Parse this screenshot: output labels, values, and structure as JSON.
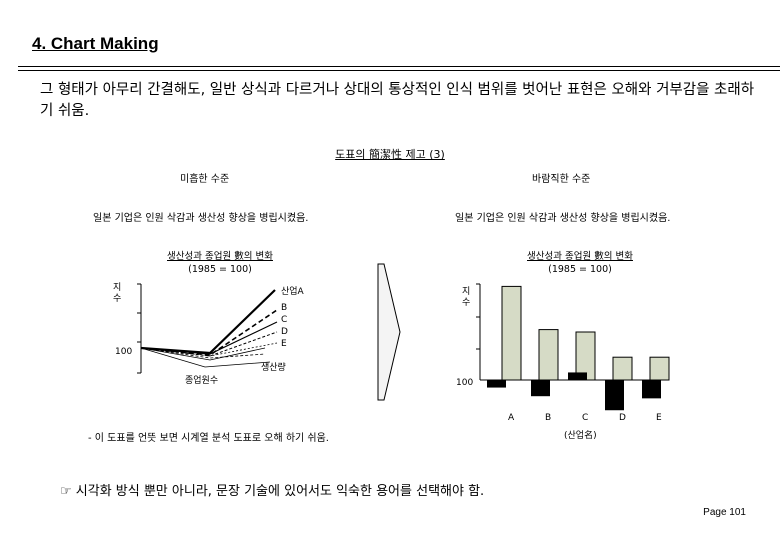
{
  "header": {
    "title": "4. Chart Making"
  },
  "intro": "그 형태가 아무리 간결해도, 일반 상식과 다르거나 상대의 통상적인 인식 범위를 벗어난 표현은 오해와 거부감을 초래하기 쉬움.",
  "diagram": {
    "title": "도표의 簡潔性 제고 (3)",
    "left": {
      "label": "미흡한 수준",
      "desc": "일본 기업은 인원 삭감과 생산성 향상을 병립시켰음.",
      "chart_title": "생산성과 종업원 數의 변화",
      "chart_subtitle": "(1985 = 100)",
      "ylabel": "지수",
      "base_label": "100",
      "line_label_upper": "생산량",
      "line_label_lower": "종업원수",
      "series_labels": [
        "산업A",
        "B",
        "C",
        "D",
        "E"
      ]
    },
    "right": {
      "label": "바람직한 수준",
      "desc": "일본 기업은 인원 삭감과 생산성 향상을 병립시켰음.",
      "chart_title": "생산성과 종업원 數의 변화",
      "chart_subtitle": "(1985 = 100)",
      "ylabel": "지수",
      "base_label": "100",
      "xlabel": "(산업名)"
    }
  },
  "chart_data": {
    "type": "bar",
    "categories": [
      "A",
      "B",
      "C",
      "D",
      "E"
    ],
    "series": [
      {
        "values": [
          178,
          142,
          140,
          119,
          119
        ]
      },
      {
        "values": [
          -7,
          -15,
          7,
          -28,
          -17
        ]
      }
    ],
    "base": 100,
    "colors": [
      "#d6dbc6",
      "#000000"
    ]
  },
  "note": "- 이 도표를 언뜻 보면 시계열 분석 도표로 오해 하기 쉬움.",
  "bottom_text": "☞ 시각화 방식 뿐만 아니라, 문장 기술에 있어서도 익숙한 용어를 선택해야 함.",
  "page": "Page 101"
}
